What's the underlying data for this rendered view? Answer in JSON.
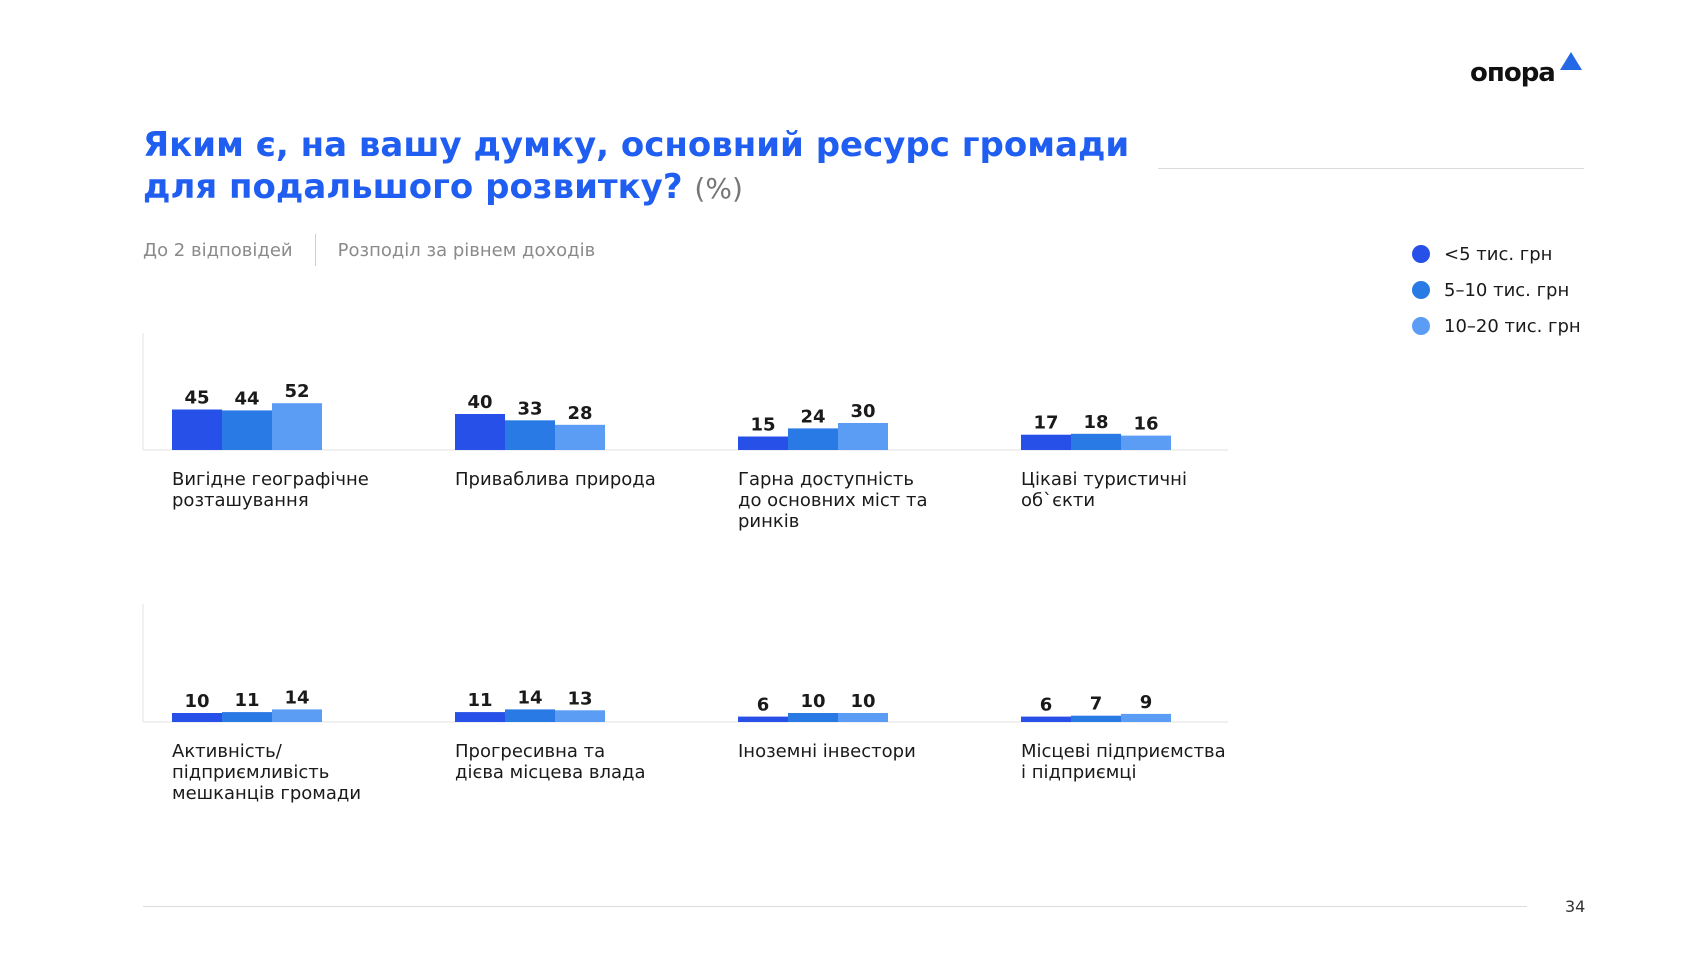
{
  "logo": {
    "text": "опора",
    "icon": "triangle-icon"
  },
  "title": "Яким є, на вашу думку, основний ресурс громади для подальшого розвитку?",
  "title_unit": "(%)",
  "subtitle_left": "До 2 відповідей",
  "subtitle_right": "Розподіл за рівнем доходів",
  "page_number": "34",
  "colors": {
    "low": "#2650e8",
    "mid": "#2a7ae6",
    "high": "#5b9df5"
  },
  "chart_data": {
    "type": "bar",
    "series": [
      {
        "name": "<5 тис. грн",
        "color": "#2650e8"
      },
      {
        "name": "5–10 тис. грн",
        "color": "#2a7ae6"
      },
      {
        "name": "10–20 тис. грн",
        "color": "#5b9df5"
      }
    ],
    "groups": [
      {
        "label": [
          "Вигідне географічне",
          "розташування"
        ],
        "values": [
          45,
          44,
          52
        ]
      },
      {
        "label": [
          "Приваблива природа"
        ],
        "values": [
          40,
          33,
          28
        ]
      },
      {
        "label": [
          "Гарна доступність",
          "до основних міст та",
          "ринків"
        ],
        "values": [
          15,
          24,
          30
        ]
      },
      {
        "label": [
          "Цікаві туристичні",
          "об`єкти"
        ],
        "values": [
          17,
          18,
          16
        ]
      },
      {
        "label": [
          "Активність/",
          "підприємливість",
          "мешканців громади"
        ],
        "values": [
          10,
          11,
          14
        ]
      },
      {
        "label": [
          "Прогресивна та",
          "дієва місцева влада"
        ],
        "values": [
          11,
          14,
          13
        ]
      },
      {
        "label": [
          "Іноземні інвестори"
        ],
        "values": [
          6,
          10,
          10
        ]
      },
      {
        "label": [
          "Місцеві підприємства",
          "і підприємці"
        ],
        "values": [
          6,
          7,
          9
        ]
      }
    ],
    "legend_position": "top-right"
  }
}
